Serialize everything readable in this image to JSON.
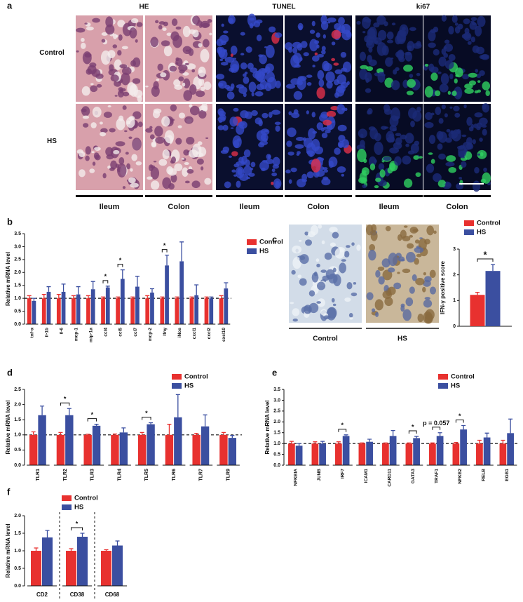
{
  "figure_a": {
    "panel_label": "a",
    "columns": [
      "HE",
      "TUNEL",
      "ki67"
    ],
    "rows": [
      "Control",
      "HS"
    ],
    "tissues": [
      "Ileum",
      "Colon",
      "Ileum",
      "Colon",
      "Ileum",
      "Colon"
    ]
  },
  "figure_c_images": {
    "labels": [
      "Control",
      "HS"
    ]
  },
  "chart_data": [
    {
      "type": "bar",
      "panel_label": "b",
      "ylabel": "Relative mRNA level",
      "categories": [
        "tnf-α",
        "il-1b",
        "il-6",
        "mcp-1",
        "mip-1a",
        "ccl4",
        "ccl5",
        "ccl7",
        "mcp-2",
        "Ifnγ",
        "iNos",
        "cxcl1",
        "cxcl2",
        "cxcl10"
      ],
      "series": [
        {
          "name": "Control",
          "color": "#e8312f",
          "values": [
            1,
            1,
            1,
            1,
            1,
            1,
            1,
            1,
            1,
            1,
            1,
            1,
            1,
            1
          ],
          "errors": [
            0.1,
            0.15,
            0.15,
            0.1,
            0.1,
            0.05,
            0.05,
            0.05,
            0.1,
            0.05,
            0.05,
            0.05,
            0.05,
            0.1
          ]
        },
        {
          "name": "HS",
          "color": "#3b4fa0",
          "values": [
            0.9,
            1.25,
            1.25,
            1.15,
            1.35,
            1.42,
            1.75,
            1.45,
            1.22,
            2.27,
            2.43,
            1.12,
            1.0,
            1.38
          ],
          "errors": [
            0.1,
            0.2,
            0.3,
            0.3,
            0.3,
            0.05,
            0.35,
            0.4,
            0.15,
            0.4,
            0.75,
            0.4,
            0.05,
            0.22
          ]
        }
      ],
      "ylim": [
        0,
        3.5
      ],
      "yticks": [
        {
          "value": 0,
          "label": "0.0"
        },
        0.5,
        {
          "value": 1,
          "label": "1.0"
        },
        1.5,
        {
          "value": 2,
          "label": "2.0"
        },
        2.5,
        {
          "value": 3,
          "label": "3.0"
        },
        3.5
      ],
      "reference_line": 1,
      "significance": [
        {
          "category": "ccl4",
          "label": "*"
        },
        {
          "category": "ccl5",
          "label": "*"
        },
        {
          "category": "Ifnγ",
          "label": "*"
        }
      ]
    },
    {
      "type": "bar",
      "panel_label": "c",
      "ylabel": "IFN-γ positive score",
      "categories": [
        null
      ],
      "series": [
        {
          "name": "Control",
          "color": "#e8312f",
          "values": [
            1.22
          ],
          "errors": [
            0.1
          ]
        },
        {
          "name": "HS",
          "color": "#3b4fa0",
          "values": [
            2.15
          ],
          "errors": [
            0.25
          ]
        }
      ],
      "ylim": [
        0,
        3
      ],
      "yticks": [
        0,
        1,
        2,
        3
      ],
      "significance": [
        {
          "category": null,
          "label": "*"
        }
      ]
    },
    {
      "type": "bar",
      "panel_label": "d",
      "ylabel": "Relative mRNA level",
      "categories": [
        "TLR1",
        "TLR2",
        "TLR3",
        "TLR4",
        "TLR5",
        "TLR6",
        "TLR7",
        "TLR9"
      ],
      "series": [
        {
          "name": "Control",
          "color": "#e8312f",
          "values": [
            1,
            1,
            1,
            1,
            1,
            1,
            1,
            1
          ],
          "errors": [
            0.1,
            0.08,
            0.02,
            0.03,
            0.08,
            0.35,
            0.05,
            0.08
          ]
        },
        {
          "name": "HS",
          "color": "#3b4fa0",
          "values": [
            1.65,
            1.65,
            1.3,
            1.08,
            1.35,
            1.58,
            1.28,
            0.9
          ],
          "errors": [
            0.3,
            0.22,
            0.05,
            0.15,
            0.05,
            0.75,
            0.38,
            0.08
          ]
        }
      ],
      "ylim": [
        0,
        2.5
      ],
      "yticks": [
        {
          "value": 0,
          "label": "0.0"
        },
        0.5,
        {
          "value": 1,
          "label": "1.0"
        },
        1.5,
        {
          "value": 2,
          "label": "2.0"
        },
        2.5
      ],
      "reference_line": 1,
      "significance": [
        {
          "category": "TLR2",
          "label": "*"
        },
        {
          "category": "TLR3",
          "label": "*"
        },
        {
          "category": "TLR5",
          "label": "*"
        }
      ]
    },
    {
      "type": "bar",
      "panel_label": "e",
      "ylabel": "Relative mRNA level",
      "categories": [
        "NFKBIA",
        "JUNB",
        "IRF7",
        "ICAM1",
        "CARD11",
        "GATA3",
        "TRAF1",
        "NFKB2",
        "RELB",
        "EGB1"
      ],
      "series": [
        {
          "name": "Control",
          "color": "#e8312f",
          "values": [
            1,
            1,
            1,
            1,
            1,
            1,
            1,
            1,
            1,
            1
          ],
          "errors": [
            0.1,
            0.08,
            0.08,
            0.03,
            0.03,
            0.03,
            0.03,
            0.05,
            0.15,
            0.15
          ]
        },
        {
          "name": "HS",
          "color": "#3b4fa0",
          "values": [
            0.9,
            1.0,
            1.35,
            1.08,
            1.35,
            1.25,
            1.35,
            1.65,
            1.28,
            1.48
          ],
          "errors": [
            0.1,
            0.1,
            0.05,
            0.12,
            0.25,
            0.08,
            0.15,
            0.18,
            0.2,
            0.65
          ]
        }
      ],
      "ylim": [
        0,
        3.5
      ],
      "yticks": [
        {
          "value": 0,
          "label": "0.0"
        },
        0.5,
        {
          "value": 1,
          "label": "1.0"
        },
        1.5,
        {
          "value": 2,
          "label": "2.0"
        },
        2.5,
        {
          "value": 3,
          "label": "3.0"
        },
        3.5
      ],
      "reference_line": 1,
      "significance": [
        {
          "category": "IRF7",
          "label": "*"
        },
        {
          "category": "GATA3",
          "label": "*"
        },
        {
          "category": "TRAF1",
          "label": "p = 0.057"
        },
        {
          "category": "NFKB2",
          "label": "*"
        }
      ]
    },
    {
      "type": "bar",
      "panel_label": "f",
      "ylabel": "Relative mRNA level",
      "categories": [
        "CD2",
        "CD38",
        "CD68"
      ],
      "series": [
        {
          "name": "Control",
          "color": "#e8312f",
          "values": [
            1.0,
            1.0,
            1.0
          ],
          "errors": [
            0.08,
            0.06,
            0.03
          ]
        },
        {
          "name": "HS",
          "color": "#3b4fa0",
          "values": [
            1.38,
            1.4,
            1.15
          ],
          "errors": [
            0.2,
            0.1,
            0.13
          ]
        }
      ],
      "ylim": [
        0,
        2
      ],
      "yticks": [
        {
          "value": 0,
          "label": "0.0"
        },
        0.5,
        {
          "value": 1,
          "label": "1.0"
        },
        1.5,
        {
          "value": 2,
          "label": "2.0"
        }
      ],
      "group_separators": true,
      "significance": [
        {
          "category": "CD38",
          "label": "*"
        }
      ]
    }
  ]
}
